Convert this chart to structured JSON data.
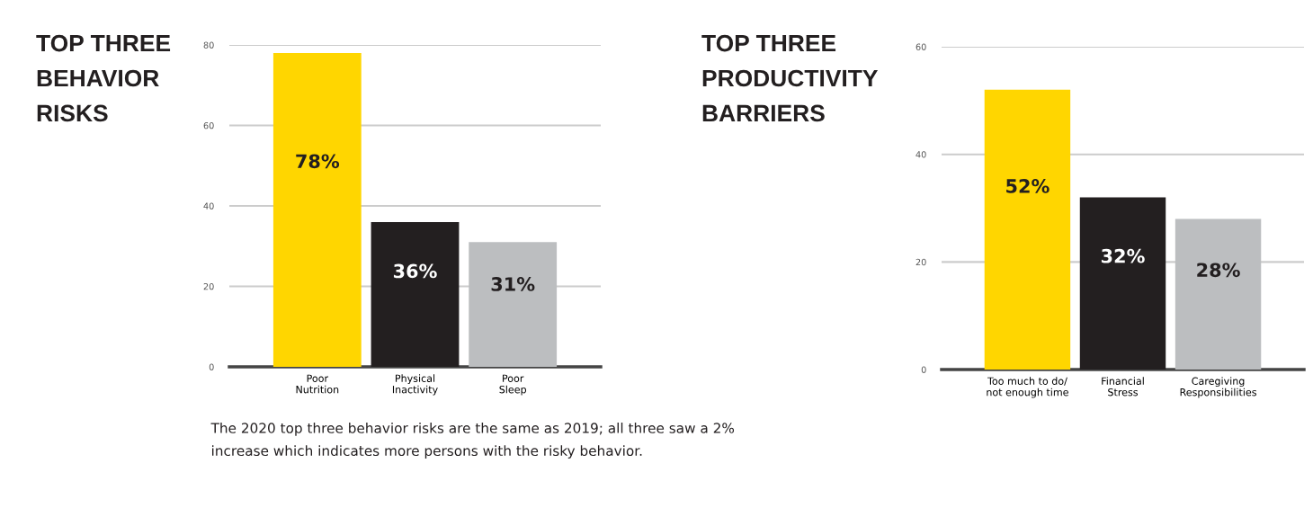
{
  "chart_data": [
    {
      "type": "bar",
      "title": "TOP THREE\nBEHAVIOR\nRISKS",
      "categories": [
        "Poor\nNutrition",
        "Physical\nInactivity",
        "Poor\nSleep"
      ],
      "values": [
        78,
        36,
        31
      ],
      "colors": [
        "#ffd600",
        "#231f20",
        "#bcbec0"
      ],
      "value_labels": [
        "78%",
        "36%",
        "31%"
      ],
      "ylim": [
        0,
        80
      ],
      "yticks": [
        0,
        20,
        40,
        60,
        80
      ],
      "grid": "y",
      "annotations": [
        "The 2020 top three behavior risks are the same as 2019; all three saw a 2% increase which indicates more persons with the risky behavior."
      ]
    },
    {
      "type": "bar",
      "title": "TOP THREE\nPRODUCTIVITY\nBARRIERS",
      "categories": [
        "Too much to do/\nnot enough time",
        "Financial\nStress",
        "Caregiving\nResponsibilities"
      ],
      "values": [
        52,
        32,
        28
      ],
      "colors": [
        "#ffd600",
        "#231f20",
        "#bcbec0"
      ],
      "value_labels": [
        "52%",
        "32%",
        "28%"
      ],
      "ylim": [
        0,
        60
      ],
      "yticks": [
        0,
        20,
        40,
        60
      ],
      "grid": "y"
    }
  ]
}
